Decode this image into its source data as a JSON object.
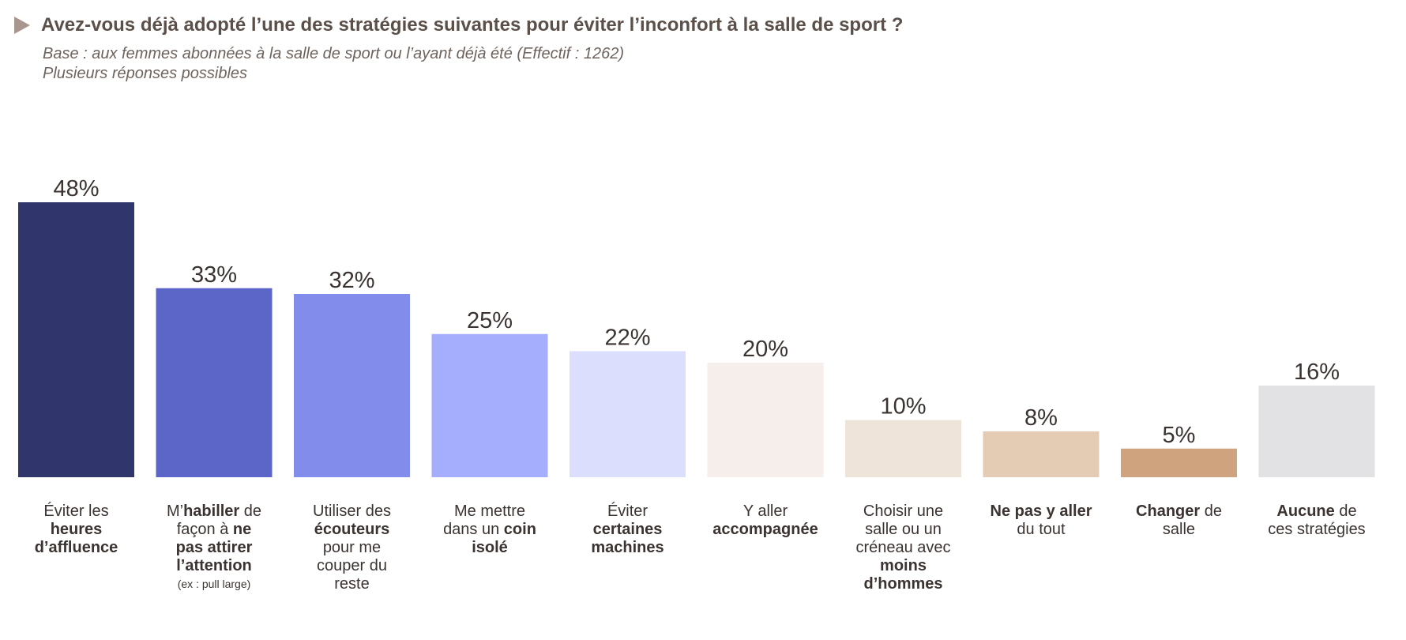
{
  "header": {
    "title": "Avez-vous déjà adopté l’une des stratégies suivantes pour éviter l’inconfort à la salle de sport ?",
    "base": "Base : aux femmes abonnées à la salle de sport ou l’ayant déjà été (Effectif : 1262)",
    "note": "Plusieurs réponses possibles"
  },
  "chart_data": {
    "type": "bar",
    "title": "Avez-vous déjà adopté l’une des stratégies suivantes pour éviter l’inconfort à la salle de sport ?",
    "unit": "%",
    "ylim": [
      0,
      50
    ],
    "grid": false,
    "categories": [
      "Éviter les heures d’affluence",
      "M’habiller de façon à ne pas attirer l’attention (ex : pull large)",
      "Utiliser des écouteurs pour me couper du reste",
      "Me mettre dans un coin isolé",
      "Éviter certaines machines",
      "Y aller accompagnée",
      "Choisir une salle ou un créneau avec moins d’hommes",
      "Ne pas y aller du tout",
      "Changer de salle",
      "Aucune de ces stratégies"
    ],
    "values": [
      48,
      33,
      32,
      25,
      22,
      20,
      10,
      8,
      5,
      16
    ],
    "value_labels": [
      "48%",
      "33%",
      "32%",
      "25%",
      "22%",
      "20%",
      "10%",
      "8%",
      "5%",
      "16%"
    ],
    "colors": [
      "#30356c",
      "#5c66c9",
      "#828ceb",
      "#a5aefc",
      "#dcdefd",
      "#f5eeea",
      "#efe4da",
      "#e4ccb4",
      "#cfa37d",
      "#e2e2e4"
    ]
  },
  "labels": [
    [
      {
        "t": "Éviter les",
        "b": false
      },
      {
        "t": "heures",
        "b": true
      },
      {
        "t": "d’affluence",
        "b": true
      }
    ],
    [
      {
        "t": "M’",
        "b": false,
        "i": true
      },
      {
        "t": "habiller",
        "b": true,
        "i": true
      },
      {
        "t": " de",
        "b": false,
        "i": true
      },
      {
        "t": "façon à ",
        "b": false
      },
      {
        "t": "ne",
        "b": true,
        "i": true
      },
      {
        "t": "pas attirer",
        "b": true
      },
      {
        "t": "l’attention",
        "b": true
      },
      {
        "t": "(ex : pull large)",
        "note": true
      }
    ],
    [
      {
        "t": "Utiliser des",
        "b": false
      },
      {
        "t": "écouteurs",
        "b": true
      },
      {
        "t": "pour me",
        "b": false
      },
      {
        "t": "couper du",
        "b": false
      },
      {
        "t": "reste",
        "b": false
      }
    ],
    [
      {
        "t": "Me mettre",
        "b": false
      },
      {
        "t": "dans un ",
        "b": false
      },
      {
        "t": "coin",
        "b": true,
        "i": true
      },
      {
        "t": "isolé",
        "b": true
      }
    ],
    [
      {
        "t": "Éviter",
        "b": false
      },
      {
        "t": "certaines",
        "b": true
      },
      {
        "t": "machines",
        "b": true
      }
    ],
    [
      {
        "t": "Y aller",
        "b": false
      },
      {
        "t": "accompagnée",
        "b": true
      }
    ],
    [
      {
        "t": "Choisir une",
        "b": false
      },
      {
        "t": "salle ou un",
        "b": false
      },
      {
        "t": "créneau avec",
        "b": false
      },
      {
        "t": "moins",
        "b": true
      },
      {
        "t": "d’hommes",
        "b": true
      }
    ],
    [
      {
        "t": "Ne pas y aller",
        "b": true
      },
      {
        "t": "du tout",
        "b": false
      }
    ],
    [
      {
        "t": "Changer",
        "b": true
      },
      {
        "t": " de",
        "b": false,
        "i": true
      },
      {
        "t": "salle",
        "b": false
      }
    ],
    [
      {
        "t": "Aucune",
        "b": true
      },
      {
        "t": " de",
        "b": false,
        "i": true
      },
      {
        "t": "ces stratégies",
        "b": false
      }
    ]
  ]
}
